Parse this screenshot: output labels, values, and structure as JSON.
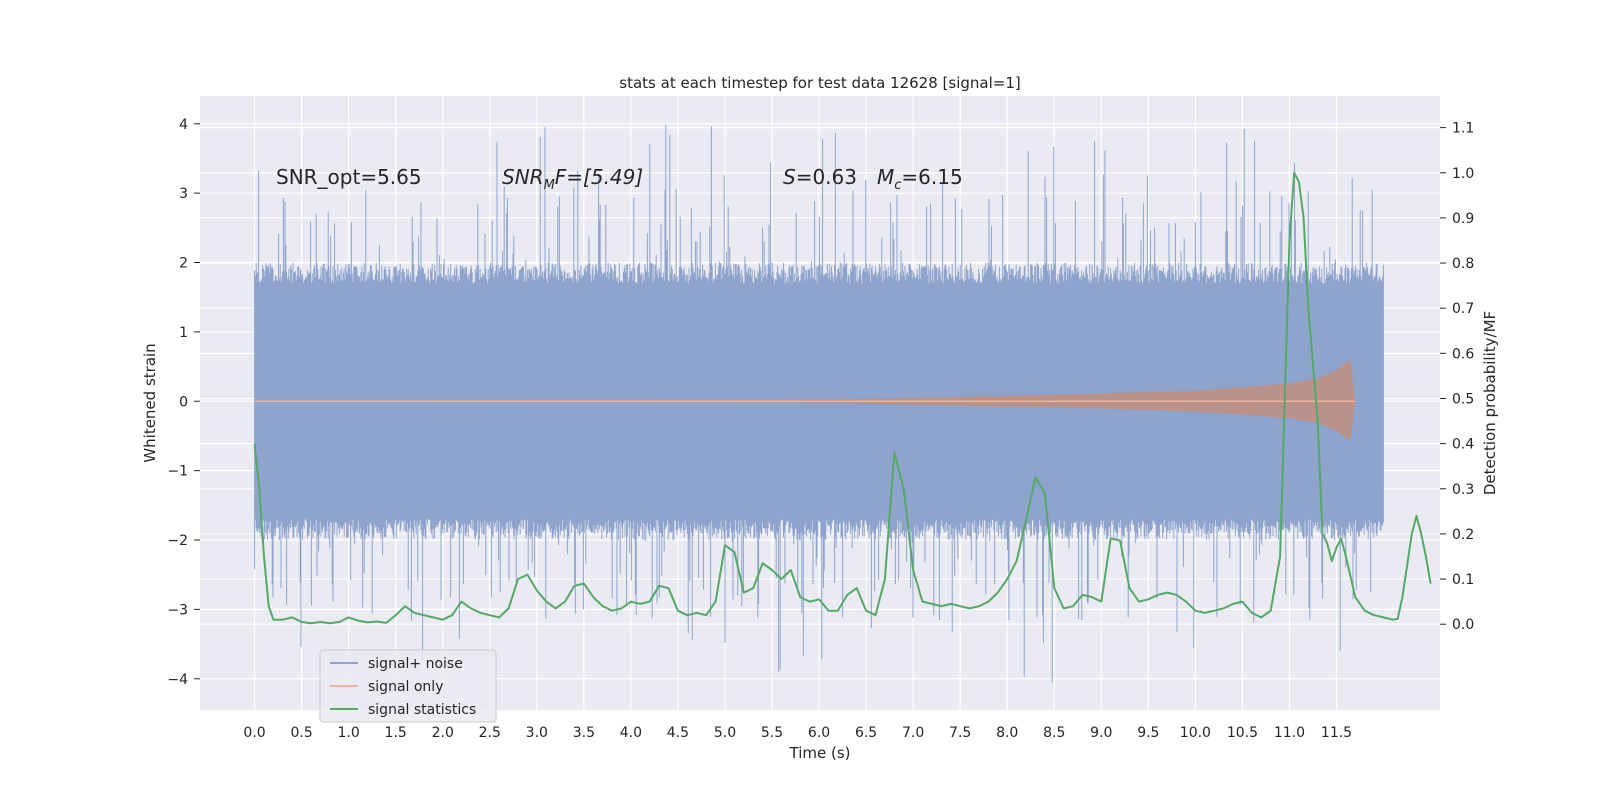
{
  "chart_data": {
    "type": "line",
    "title": "stats at each timestep for test data 12628 [signal=1]",
    "xlabel": "Time (s)",
    "ylabel": "Whitened strain",
    "y2label": "Detection probability/MF",
    "xlim": [
      -0.58,
      12.6
    ],
    "ylim": [
      -4.45,
      4.4
    ],
    "y2lim": [
      -0.19,
      1.17
    ],
    "x_ticks": [
      "0.0",
      "0.5",
      "1.0",
      "1.5",
      "2.0",
      "2.5",
      "3.0",
      "3.5",
      "4.0",
      "4.5",
      "5.0",
      "5.5",
      "6.0",
      "6.5",
      "7.0",
      "7.5",
      "8.0",
      "8.5",
      "9.0",
      "9.5",
      "10.0",
      "10.5",
      "11.0",
      "11.5"
    ],
    "y_ticks": [
      4,
      3,
      2,
      1,
      0,
      -1,
      -2,
      -3,
      -4
    ],
    "y_tick_labels": [
      "4",
      "3",
      "2",
      "1",
      "0",
      "−1",
      "−2",
      "−3",
      "−4"
    ],
    "y2_ticks": [
      "1.1",
      "1.0",
      "0.9",
      "0.8",
      "0.7",
      "0.6",
      "0.5",
      "0.4",
      "0.3",
      "0.2",
      "0.1",
      "0.0"
    ],
    "grid": true,
    "legend_placement": "lower-left",
    "annotations": {
      "snr_opt": "SNR_opt=5.65",
      "snr_mf_base": "SNR",
      "snr_mf_sub": "M",
      "snr_mf_rest": "F=[5.49]",
      "s_var": "S",
      "s_rest": "=0.63",
      "mc_var": "M",
      "mc_sub": "c",
      "mc_rest": "=6.15"
    },
    "series": [
      {
        "name": "signal+ noise",
        "color": "#8fa4cd",
        "x_range": [
          0.0,
          12.0
        ],
        "envelope_core": [
          -1.2,
          1.2
        ],
        "typical_extent": [
          -2.0,
          2.0
        ],
        "extreme_extent": [
          -4.1,
          4.0
        ]
      },
      {
        "name": "signal only",
        "color": "#dd8452",
        "x_range": [
          0.0,
          11.7
        ],
        "amplitude_points": [
          [
            0.0,
            0.01
          ],
          [
            6.0,
            0.02
          ],
          [
            7.0,
            0.05
          ],
          [
            8.0,
            0.08
          ],
          [
            9.0,
            0.11
          ],
          [
            10.0,
            0.16
          ],
          [
            10.5,
            0.2
          ],
          [
            11.0,
            0.26
          ],
          [
            11.3,
            0.33
          ],
          [
            11.5,
            0.45
          ],
          [
            11.65,
            0.6
          ],
          [
            11.7,
            0.0
          ]
        ]
      },
      {
        "name": "signal statistics",
        "color": "#55a868",
        "axis": "right",
        "points": [
          [
            0.0,
            0.4
          ],
          [
            0.05,
            0.3
          ],
          [
            0.1,
            0.15
          ],
          [
            0.15,
            0.04
          ],
          [
            0.2,
            0.01
          ],
          [
            0.3,
            0.01
          ],
          [
            0.4,
            0.015
          ],
          [
            0.5,
            0.005
          ],
          [
            0.6,
            0.002
          ],
          [
            0.7,
            0.005
          ],
          [
            0.8,
            0.002
          ],
          [
            0.9,
            0.005
          ],
          [
            1.0,
            0.015
          ],
          [
            1.1,
            0.008
          ],
          [
            1.2,
            0.004
          ],
          [
            1.3,
            0.006
          ],
          [
            1.4,
            0.003
          ],
          [
            1.5,
            0.02
          ],
          [
            1.6,
            0.04
          ],
          [
            1.7,
            0.025
          ],
          [
            1.8,
            0.02
          ],
          [
            1.9,
            0.015
          ],
          [
            2.0,
            0.01
          ],
          [
            2.1,
            0.02
          ],
          [
            2.2,
            0.05
          ],
          [
            2.3,
            0.035
          ],
          [
            2.4,
            0.025
          ],
          [
            2.5,
            0.02
          ],
          [
            2.6,
            0.015
          ],
          [
            2.7,
            0.035
          ],
          [
            2.8,
            0.1
          ],
          [
            2.9,
            0.11
          ],
          [
            3.0,
            0.075
          ],
          [
            3.1,
            0.05
          ],
          [
            3.2,
            0.035
          ],
          [
            3.3,
            0.05
          ],
          [
            3.4,
            0.085
          ],
          [
            3.5,
            0.09
          ],
          [
            3.6,
            0.06
          ],
          [
            3.7,
            0.04
          ],
          [
            3.8,
            0.03
          ],
          [
            3.9,
            0.035
          ],
          [
            4.0,
            0.05
          ],
          [
            4.1,
            0.045
          ],
          [
            4.2,
            0.05
          ],
          [
            4.3,
            0.085
          ],
          [
            4.4,
            0.08
          ],
          [
            4.5,
            0.03
          ],
          [
            4.6,
            0.02
          ],
          [
            4.7,
            0.025
          ],
          [
            4.8,
            0.02
          ],
          [
            4.9,
            0.05
          ],
          [
            5.0,
            0.175
          ],
          [
            5.1,
            0.16
          ],
          [
            5.2,
            0.07
          ],
          [
            5.3,
            0.08
          ],
          [
            5.4,
            0.135
          ],
          [
            5.5,
            0.12
          ],
          [
            5.6,
            0.1
          ],
          [
            5.7,
            0.12
          ],
          [
            5.8,
            0.06
          ],
          [
            5.9,
            0.05
          ],
          [
            6.0,
            0.055
          ],
          [
            6.1,
            0.03
          ],
          [
            6.2,
            0.03
          ],
          [
            6.3,
            0.065
          ],
          [
            6.4,
            0.08
          ],
          [
            6.5,
            0.03
          ],
          [
            6.6,
            0.02
          ],
          [
            6.7,
            0.1
          ],
          [
            6.8,
            0.38
          ],
          [
            6.9,
            0.3
          ],
          [
            7.0,
            0.12
          ],
          [
            7.1,
            0.05
          ],
          [
            7.2,
            0.045
          ],
          [
            7.3,
            0.04
          ],
          [
            7.4,
            0.045
          ],
          [
            7.5,
            0.04
          ],
          [
            7.6,
            0.035
          ],
          [
            7.7,
            0.04
          ],
          [
            7.8,
            0.05
          ],
          [
            7.9,
            0.07
          ],
          [
            8.0,
            0.1
          ],
          [
            8.1,
            0.14
          ],
          [
            8.2,
            0.23
          ],
          [
            8.3,
            0.325
          ],
          [
            8.4,
            0.29
          ],
          [
            8.5,
            0.08
          ],
          [
            8.6,
            0.035
          ],
          [
            8.7,
            0.04
          ],
          [
            8.8,
            0.065
          ],
          [
            8.9,
            0.06
          ],
          [
            9.0,
            0.05
          ],
          [
            9.1,
            0.19
          ],
          [
            9.2,
            0.185
          ],
          [
            9.3,
            0.08
          ],
          [
            9.4,
            0.05
          ],
          [
            9.5,
            0.055
          ],
          [
            9.6,
            0.065
          ],
          [
            9.7,
            0.07
          ],
          [
            9.8,
            0.065
          ],
          [
            9.9,
            0.05
          ],
          [
            10.0,
            0.03
          ],
          [
            10.1,
            0.025
          ],
          [
            10.2,
            0.03
          ],
          [
            10.3,
            0.035
          ],
          [
            10.4,
            0.045
          ],
          [
            10.5,
            0.05
          ],
          [
            10.6,
            0.025
          ],
          [
            10.7,
            0.015
          ],
          [
            10.8,
            0.03
          ],
          [
            10.9,
            0.15
          ],
          [
            10.95,
            0.5
          ],
          [
            11.0,
            0.85
          ],
          [
            11.05,
            1.0
          ],
          [
            11.1,
            0.98
          ],
          [
            11.15,
            0.9
          ],
          [
            11.2,
            0.7
          ],
          [
            11.3,
            0.45
          ],
          [
            11.35,
            0.2
          ],
          [
            11.4,
            0.18
          ],
          [
            11.45,
            0.14
          ],
          [
            11.5,
            0.17
          ],
          [
            11.55,
            0.19
          ],
          [
            11.6,
            0.15
          ],
          [
            11.7,
            0.06
          ],
          [
            11.8,
            0.03
          ],
          [
            11.9,
            0.02
          ],
          [
            12.0,
            0.015
          ],
          [
            12.1,
            0.01
          ],
          [
            12.15,
            0.012
          ],
          [
            12.2,
            0.06
          ],
          [
            12.3,
            0.2
          ],
          [
            12.35,
            0.24
          ],
          [
            12.4,
            0.2
          ],
          [
            12.45,
            0.15
          ],
          [
            12.5,
            0.09
          ]
        ]
      }
    ]
  }
}
